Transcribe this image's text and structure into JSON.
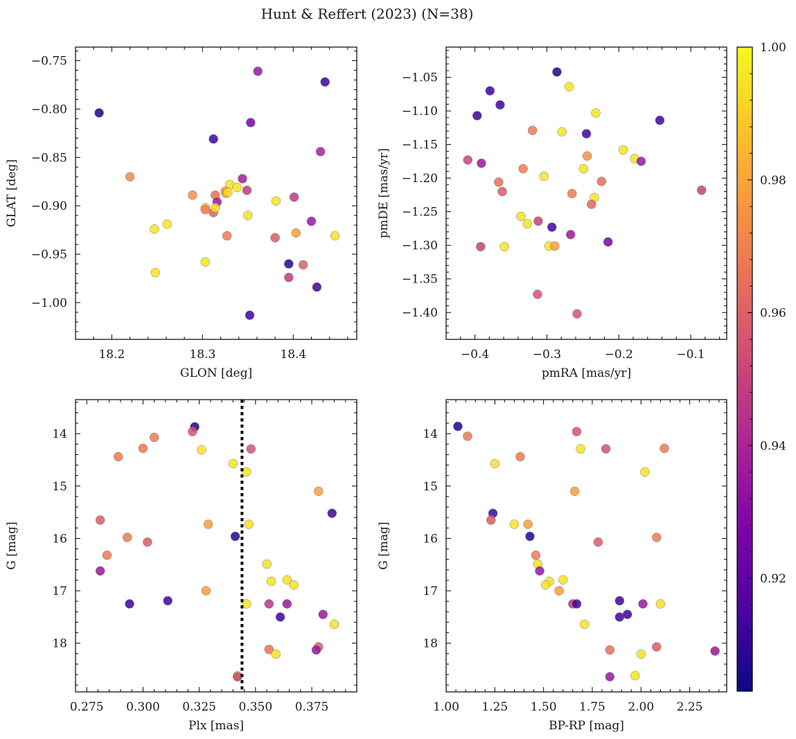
{
  "figure": {
    "title": "Hunt & Reffert (2023) (N=38)",
    "colorbar": {
      "range": [
        0.903,
        1.0
      ],
      "ticks": [
        0.92,
        0.94,
        0.96,
        0.98,
        1.0
      ],
      "tick_labels": [
        "0.92",
        "0.94",
        "0.96",
        "0.98",
        "1.00"
      ],
      "colormap": "plasma"
    }
  },
  "chart_data": [
    {
      "type": "scatter",
      "xlabel": "GLON [deg]",
      "ylabel": "GLAT [deg]",
      "xlim": [
        18.16,
        18.47
      ],
      "ylim": [
        -1.038,
        -0.736
      ],
      "xticks": [
        18.2,
        18.3,
        18.4
      ],
      "xtick_labels": [
        "18.2",
        "18.3",
        "18.4"
      ],
      "yticks": [
        -0.75,
        -0.8,
        -0.85,
        -0.9,
        -0.95,
        -1.0
      ],
      "ytick_labels": [
        "−0.75",
        "−0.80",
        "−0.85",
        "−0.90",
        "−0.95",
        "−1.00"
      ],
      "x": [
        18.186,
        18.435,
        18.361,
        18.353,
        18.312,
        18.43,
        18.22,
        18.344,
        18.33,
        18.338,
        18.349,
        18.325,
        18.314,
        18.326,
        18.289,
        18.316,
        18.303,
        18.312,
        18.381,
        18.401,
        18.303,
        18.314,
        18.35,
        18.261,
        18.247,
        18.42,
        18.327,
        18.38,
        18.403,
        18.446,
        18.303,
        18.395,
        18.411,
        18.248,
        18.395,
        18.426,
        18.352,
        18.328
      ],
      "y": [
        -0.804,
        -0.772,
        -0.761,
        -0.814,
        -0.831,
        -0.844,
        -0.87,
        -0.872,
        -0.878,
        -0.881,
        -0.884,
        -0.885,
        -0.889,
        -0.887,
        -0.889,
        -0.896,
        -0.902,
        -0.907,
        -0.895,
        -0.891,
        -0.904,
        -0.902,
        -0.91,
        -0.919,
        -0.924,
        -0.916,
        -0.931,
        -0.933,
        -0.928,
        -0.931,
        -0.958,
        -0.96,
        -0.961,
        -0.969,
        -0.974,
        -0.984,
        -1.013,
        -0.886
      ],
      "c": [
        0.905,
        0.913,
        0.935,
        0.925,
        0.913,
        0.939,
        0.973,
        0.937,
        0.995,
        0.995,
        0.947,
        0.975,
        0.965,
        0.978,
        0.974,
        0.935,
        0.985,
        0.96,
        0.995,
        0.947,
        0.97,
        0.995,
        0.995,
        0.995,
        0.995,
        0.935,
        0.968,
        0.958,
        0.978,
        0.995,
        0.995,
        0.907,
        0.96,
        0.995,
        0.947,
        0.913,
        0.913,
        0.995
      ]
    },
    {
      "type": "scatter",
      "xlabel": "pmRA [mas/yr]",
      "ylabel": "pmDE [mas/yr]",
      "xlim": [
        -0.44,
        -0.05
      ],
      "ylim": [
        -1.44,
        -1.005
      ],
      "xticks": [
        -0.4,
        -0.3,
        -0.2,
        -0.1
      ],
      "xtick_labels": [
        "−0.4",
        "−0.3",
        "−0.2",
        "−0.1"
      ],
      "yticks": [
        -1.05,
        -1.1,
        -1.15,
        -1.2,
        -1.25,
        -1.3,
        -1.35,
        -1.4
      ],
      "ytick_labels": [
        "−1.05",
        "−1.10",
        "−1.15",
        "−1.20",
        "−1.25",
        "−1.30",
        "−1.35",
        "−1.40"
      ],
      "x": [
        -0.286,
        -0.269,
        -0.379,
        -0.365,
        -0.397,
        -0.232,
        -0.143,
        -0.279,
        -0.32,
        -0.245,
        -0.194,
        -0.178,
        -0.41,
        -0.391,
        -0.169,
        -0.249,
        -0.333,
        -0.224,
        -0.304,
        -0.367,
        -0.265,
        -0.362,
        -0.234,
        -0.085,
        -0.238,
        -0.336,
        -0.327,
        -0.312,
        -0.293,
        -0.267,
        -0.392,
        -0.359,
        -0.297,
        -0.289,
        -0.215,
        -0.313,
        -0.258,
        -0.244
      ],
      "y": [
        -1.042,
        -1.064,
        -1.07,
        -1.091,
        -1.107,
        -1.103,
        -1.114,
        -1.131,
        -1.129,
        -1.134,
        -1.158,
        -1.171,
        -1.173,
        -1.178,
        -1.175,
        -1.186,
        -1.186,
        -1.205,
        -1.197,
        -1.206,
        -1.223,
        -1.22,
        -1.229,
        -1.218,
        -1.239,
        -1.257,
        -1.268,
        -1.264,
        -1.273,
        -1.284,
        -1.302,
        -1.302,
        -1.301,
        -1.301,
        -1.295,
        -1.373,
        -1.402,
        -1.167
      ],
      "c": [
        0.905,
        0.995,
        0.913,
        0.913,
        0.913,
        0.995,
        0.913,
        0.995,
        0.968,
        0.913,
        0.995,
        0.995,
        0.95,
        0.935,
        0.935,
        0.995,
        0.968,
        0.965,
        0.995,
        0.965,
        0.968,
        0.958,
        0.995,
        0.95,
        0.962,
        0.995,
        0.995,
        0.95,
        0.913,
        0.935,
        0.95,
        0.995,
        0.995,
        0.978,
        0.925,
        0.955,
        0.955,
        0.975
      ]
    },
    {
      "type": "scatter",
      "xlabel": "Plx [mas]",
      "ylabel": "G [mag]",
      "xlim": [
        0.27,
        0.395
      ],
      "ylim": [
        18.93,
        13.35
      ],
      "xticks": [
        0.275,
        0.3,
        0.325,
        0.35,
        0.375
      ],
      "xtick_labels": [
        "0.275",
        "0.300",
        "0.325",
        "0.350",
        "0.375"
      ],
      "yticks": [
        14,
        15,
        16,
        17,
        18
      ],
      "ytick_labels": [
        "14",
        "15",
        "16",
        "17",
        "18"
      ],
      "vline": 0.344,
      "x": [
        0.323,
        0.322,
        0.305,
        0.3,
        0.326,
        0.289,
        0.348,
        0.34,
        0.346,
        0.378,
        0.384,
        0.281,
        0.329,
        0.347,
        0.341,
        0.293,
        0.302,
        0.284,
        0.355,
        0.281,
        0.357,
        0.364,
        0.367,
        0.328,
        0.294,
        0.311,
        0.356,
        0.346,
        0.364,
        0.361,
        0.38,
        0.385,
        0.356,
        0.378,
        0.377,
        0.359,
        0.342,
        0.342
      ],
      "y": [
        13.87,
        13.96,
        14.07,
        14.28,
        14.31,
        14.44,
        14.29,
        14.57,
        14.73,
        15.1,
        15.52,
        15.65,
        15.73,
        15.73,
        15.96,
        15.98,
        16.07,
        16.32,
        16.49,
        16.62,
        16.82,
        16.79,
        16.89,
        17.0,
        17.25,
        17.19,
        17.25,
        17.25,
        17.25,
        17.5,
        17.45,
        17.64,
        18.12,
        18.07,
        18.13,
        18.21,
        18.62,
        18.64
      ],
      "c": [
        0.905,
        0.955,
        0.968,
        0.968,
        0.995,
        0.968,
        0.955,
        0.995,
        0.995,
        0.978,
        0.913,
        0.958,
        0.978,
        0.995,
        0.907,
        0.968,
        0.958,
        0.968,
        0.995,
        0.935,
        0.995,
        0.995,
        0.995,
        0.978,
        0.913,
        0.913,
        0.945,
        0.995,
        0.935,
        0.913,
        0.935,
        0.995,
        0.965,
        0.958,
        0.935,
        0.995,
        0.995,
        0.95
      ]
    },
    {
      "type": "scatter",
      "xlabel": "BP-RP [mag]",
      "ylabel": "G [mag]",
      "xlim": [
        1.0,
        2.44
      ],
      "ylim": [
        18.93,
        13.35
      ],
      "xticks": [
        1.0,
        1.25,
        1.5,
        1.75,
        2.0,
        2.25
      ],
      "xtick_labels": [
        "1.00",
        "1.25",
        "1.50",
        "1.75",
        "2.00",
        "2.25"
      ],
      "yticks": [
        14,
        15,
        16,
        17,
        18
      ],
      "ytick_labels": [
        "14",
        "15",
        "16",
        "17",
        "18"
      ],
      "x": [
        1.06,
        1.11,
        1.25,
        1.38,
        1.67,
        1.82,
        1.69,
        2.12,
        2.02,
        1.66,
        1.24,
        1.23,
        1.35,
        1.42,
        1.43,
        1.46,
        1.47,
        1.48,
        1.53,
        1.51,
        1.6,
        1.58,
        1.65,
        1.67,
        2.08,
        1.78,
        1.89,
        2.01,
        2.1,
        1.89,
        1.93,
        1.71,
        1.84,
        2.08,
        2.0,
        2.38,
        1.97,
        1.84
      ],
      "y": [
        13.86,
        14.05,
        14.57,
        14.44,
        13.96,
        14.29,
        14.29,
        14.28,
        14.73,
        15.1,
        15.52,
        15.65,
        15.73,
        15.73,
        15.96,
        16.32,
        16.49,
        16.62,
        16.82,
        16.89,
        16.79,
        17.0,
        17.25,
        17.25,
        15.98,
        16.07,
        17.19,
        17.25,
        17.25,
        17.5,
        17.45,
        17.64,
        18.13,
        18.07,
        18.21,
        18.15,
        18.62,
        18.64
      ],
      "c": [
        0.905,
        0.968,
        0.995,
        0.968,
        0.955,
        0.955,
        0.995,
        0.968,
        0.995,
        0.978,
        0.913,
        0.958,
        0.995,
        0.978,
        0.907,
        0.968,
        0.995,
        0.935,
        0.995,
        0.995,
        0.995,
        0.978,
        0.945,
        0.913,
        0.968,
        0.958,
        0.913,
        0.935,
        0.995,
        0.913,
        0.913,
        0.995,
        0.965,
        0.958,
        0.995,
        0.935,
        0.995,
        0.935
      ]
    }
  ]
}
